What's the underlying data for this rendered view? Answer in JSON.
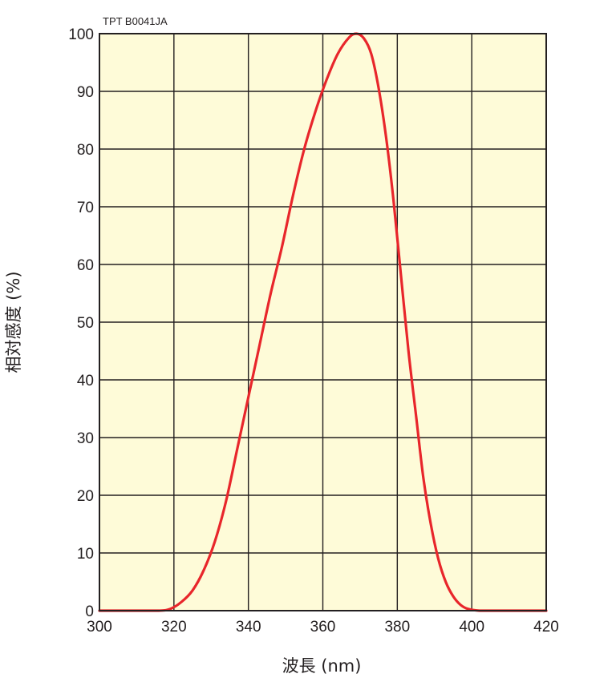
{
  "chart_data": {
    "type": "line",
    "title": "",
    "code": "TPT B0041JA",
    "xlabel": "波長 (nm)",
    "ylabel": "相対感度 (%)",
    "xlim": [
      300,
      420
    ],
    "ylim": [
      0,
      100
    ],
    "xticks": [
      300,
      320,
      340,
      360,
      380,
      400,
      420
    ],
    "yticks": [
      0,
      10,
      20,
      30,
      40,
      50,
      60,
      70,
      80,
      90,
      100
    ],
    "grid": true,
    "plot_background": "#fefbd8",
    "series": [
      {
        "color": "#e8262b",
        "x": [
          300,
          310,
          316,
          319,
          322,
          325,
          328,
          331,
          334,
          337,
          340,
          343,
          346,
          349,
          352,
          355,
          358,
          361,
          364,
          367,
          369,
          371,
          373,
          375,
          377,
          379,
          381,
          383,
          385,
          387,
          389,
          391,
          393,
          395,
          397,
          399,
          402,
          405,
          410,
          420
        ],
        "y": [
          0,
          0,
          0,
          0.3,
          1.5,
          3.5,
          7,
          12,
          19,
          28,
          37,
          46,
          55,
          63,
          72,
          80,
          86.5,
          92,
          96.5,
          99.3,
          100,
          99.2,
          96.5,
          90.5,
          82,
          71,
          58,
          45,
          34,
          23,
          15,
          9,
          5,
          2.5,
          1,
          0.3,
          0,
          0,
          0,
          0
        ]
      }
    ]
  }
}
